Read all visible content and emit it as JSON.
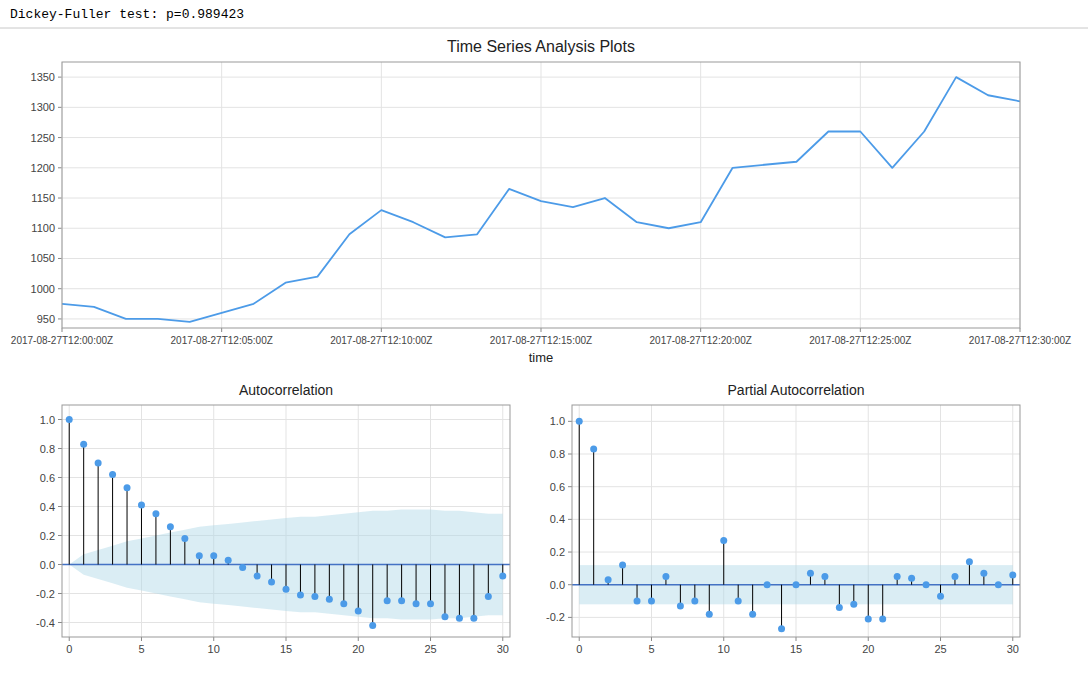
{
  "chart_data": [
    {
      "type": "line",
      "title": "Time Series Analysis Plots",
      "annotations": [
        "Dickey-Fuller test: p=0.989423"
      ],
      "xlabel": "time",
      "categories": [
        "2017-08-27T12:00:00Z",
        null,
        null,
        null,
        null,
        "2017-08-27T12:05:00Z",
        null,
        null,
        null,
        null,
        "2017-08-27T12:10:00Z",
        null,
        null,
        null,
        null,
        "2017-08-27T12:15:00Z",
        null,
        null,
        null,
        null,
        "2017-08-27T12:20:00Z",
        null,
        null,
        null,
        null,
        "2017-08-27T12:25:00Z",
        null,
        null,
        null,
        null,
        "2017-08-27T12:30:00Z"
      ],
      "values": [
        975,
        970,
        950,
        950,
        945,
        960,
        975,
        1010,
        1020,
        1090,
        1130,
        1110,
        1085,
        1090,
        1165,
        1145,
        1135,
        1150,
        1110,
        1100,
        1110,
        1200,
        1205,
        1210,
        1260,
        1260,
        1200,
        1260,
        1350,
        1320,
        1310
      ],
      "color": "#4c9be8",
      "ylim": [
        935,
        1375
      ],
      "yticks": [
        950,
        1000,
        1050,
        1100,
        1150,
        1200,
        1250,
        1300,
        1350
      ],
      "grid": true
    },
    {
      "type": "stem",
      "title": "Autocorrelation",
      "x": [
        0,
        1,
        2,
        3,
        4,
        5,
        6,
        7,
        8,
        9,
        10,
        11,
        12,
        13,
        14,
        15,
        16,
        17,
        18,
        19,
        20,
        21,
        22,
        23,
        24,
        25,
        26,
        27,
        28,
        29,
        30
      ],
      "values": [
        1.0,
        0.83,
        0.7,
        0.62,
        0.53,
        0.41,
        0.35,
        0.26,
        0.18,
        0.06,
        0.06,
        0.03,
        -0.02,
        -0.08,
        -0.12,
        -0.17,
        -0.21,
        -0.22,
        -0.24,
        -0.27,
        -0.32,
        -0.42,
        -0.25,
        -0.25,
        -0.27,
        -0.27,
        -0.36,
        -0.37,
        -0.37,
        -0.22,
        -0.08
      ],
      "conf_upper": [
        0.0,
        0.07,
        0.1,
        0.13,
        0.16,
        0.18,
        0.2,
        0.22,
        0.24,
        0.26,
        0.27,
        0.28,
        0.29,
        0.3,
        0.31,
        0.32,
        0.33,
        0.33,
        0.34,
        0.35,
        0.36,
        0.37,
        0.37,
        0.38,
        0.38,
        0.38,
        0.37,
        0.37,
        0.36,
        0.35,
        0.35
      ],
      "conf_lower": [
        0.0,
        -0.07,
        -0.1,
        -0.13,
        -0.16,
        -0.18,
        -0.2,
        -0.22,
        -0.24,
        -0.26,
        -0.27,
        -0.28,
        -0.29,
        -0.3,
        -0.31,
        -0.32,
        -0.33,
        -0.33,
        -0.34,
        -0.35,
        -0.36,
        -0.37,
        -0.37,
        -0.38,
        -0.38,
        -0.38,
        -0.37,
        -0.37,
        -0.36,
        -0.35,
        -0.35
      ],
      "color": "#4c9be8",
      "xlim": [
        -0.5,
        30.5
      ],
      "xticks": [
        0,
        5,
        10,
        15,
        20,
        25,
        30
      ],
      "ylim": [
        -0.5,
        1.1
      ],
      "yticks": [
        -0.4,
        -0.2,
        {
          "value": 0.0,
          "label": "0.0"
        },
        0.2,
        0.4,
        0.6,
        0.8,
        {
          "value": 1.0,
          "label": "1.0"
        }
      ],
      "grid": true
    },
    {
      "type": "stem",
      "title": "Partial Autocorrelation",
      "x": [
        0,
        1,
        2,
        3,
        4,
        5,
        6,
        7,
        8,
        9,
        10,
        11,
        12,
        13,
        14,
        15,
        16,
        17,
        18,
        19,
        20,
        21,
        22,
        23,
        24,
        25,
        26,
        27,
        28,
        29,
        30
      ],
      "values": [
        1.0,
        0.83,
        0.03,
        0.12,
        -0.1,
        -0.1,
        0.05,
        -0.13,
        -0.1,
        -0.18,
        0.27,
        -0.1,
        -0.18,
        0.0,
        -0.27,
        0.0,
        0.07,
        0.05,
        -0.14,
        -0.12,
        -0.21,
        -0.21,
        0.05,
        0.04,
        0.0,
        -0.07,
        0.05,
        0.14,
        0.07,
        0.0,
        0.06
      ],
      "conf_upper": 0.12,
      "conf_lower": -0.12,
      "color": "#4c9be8",
      "xlim": [
        -0.5,
        30.5
      ],
      "xticks": [
        0,
        5,
        10,
        15,
        20,
        25,
        30
      ],
      "ylim": [
        -0.32,
        1.1
      ],
      "yticks": [
        -0.2,
        {
          "value": 0.0,
          "label": "0.0"
        },
        0.2,
        0.4,
        0.6,
        0.8,
        {
          "value": 1.0,
          "label": "1.0"
        }
      ],
      "grid": true
    }
  ]
}
